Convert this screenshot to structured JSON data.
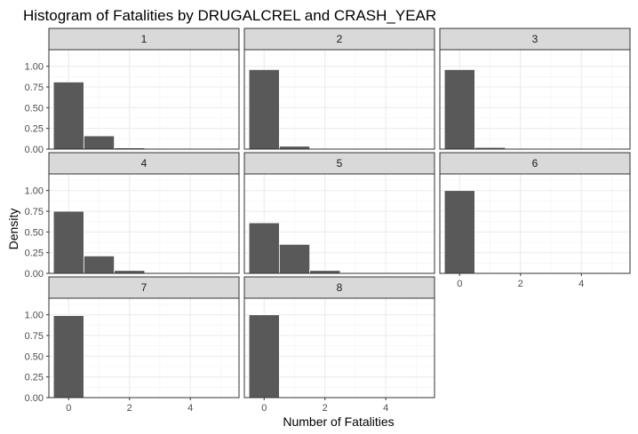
{
  "chart_data": {
    "type": "bar",
    "title": "Histogram of Fatalities by DRUGALCREL and CRASH_YEAR",
    "xlabel": "Number of Fatalities",
    "ylabel": "Density",
    "x_ticks": [
      0,
      2,
      4
    ],
    "y_ticks": [
      "0.00",
      "0.25",
      "0.50",
      "0.75",
      "1.00"
    ],
    "xlim": [
      -0.65,
      5.6
    ],
    "ylim": [
      0,
      1.2
    ],
    "bin_width": 1,
    "bar_color": "#595959",
    "grid": true,
    "panels": [
      {
        "label": "1",
        "bins": [
          0,
          1,
          2
        ],
        "values": [
          0.81,
          0.16,
          0.015
        ]
      },
      {
        "label": "2",
        "bins": [
          0,
          1
        ],
        "values": [
          0.96,
          0.035
        ]
      },
      {
        "label": "3",
        "bins": [
          0,
          1
        ],
        "values": [
          0.96,
          0.02
        ]
      },
      {
        "label": "4",
        "bins": [
          0,
          1,
          2
        ],
        "values": [
          0.75,
          0.21,
          0.035
        ]
      },
      {
        "label": "5",
        "bins": [
          0,
          1,
          2
        ],
        "values": [
          0.61,
          0.35,
          0.035
        ]
      },
      {
        "label": "6",
        "bins": [
          0
        ],
        "values": [
          1.0
        ]
      },
      {
        "label": "7",
        "bins": [
          0
        ],
        "values": [
          0.99
        ]
      },
      {
        "label": "8",
        "bins": [
          0
        ],
        "values": [
          1.0
        ]
      }
    ]
  }
}
